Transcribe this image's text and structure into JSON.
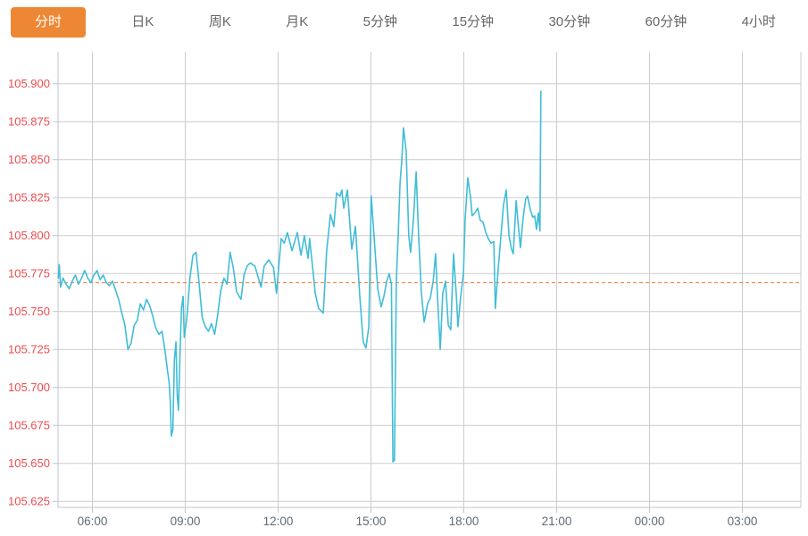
{
  "tabbar": {
    "items": [
      {
        "label": "分时",
        "active": true
      },
      {
        "label": "日K",
        "active": false
      },
      {
        "label": "周K",
        "active": false
      },
      {
        "label": "月K",
        "active": false
      },
      {
        "label": "5分钟",
        "active": false
      },
      {
        "label": "15分钟",
        "active": false
      },
      {
        "label": "30分钟",
        "active": false
      },
      {
        "label": "60分钟",
        "active": false
      },
      {
        "label": "4小时",
        "active": false
      }
    ]
  },
  "colors": {
    "accent": "#ee8733",
    "tab_text": "#666666",
    "line": "#41bdd6",
    "reference": "#f26f21",
    "y_label": "#ef4a4d",
    "x_label": "#5f6c76",
    "grid": "#cccccc",
    "axis": "#bfc5c9"
  },
  "chart_data": {
    "type": "line",
    "title": "",
    "xlabel": "",
    "ylabel": "",
    "legend": "none",
    "grid": true,
    "ylim": [
      105.621,
      105.921
    ],
    "xlim_hours": [
      4.89,
      28.89
    ],
    "y_ticks": [
      105.9,
      105.875,
      105.85,
      105.825,
      105.8,
      105.775,
      105.75,
      105.725,
      105.7,
      105.675,
      105.65,
      105.625
    ],
    "y_tick_labels": [
      "105.900",
      "105.875",
      "105.850",
      "105.825",
      "105.800",
      "105.775",
      "105.750",
      "105.725",
      "105.700",
      "105.675",
      "105.650",
      "105.625"
    ],
    "x_tick_hours": [
      6,
      9,
      12,
      15,
      18,
      21,
      24,
      27
    ],
    "x_tick_labels": [
      "06:00",
      "09:00",
      "12:00",
      "15:00",
      "18:00",
      "21:00",
      "00:00",
      "03:00"
    ],
    "reference_line": {
      "value": 105.769,
      "style": "dashed",
      "color": "#f26f21"
    },
    "series": [
      {
        "name": "price",
        "color": "#41bdd6",
        "points": [
          [
            4.9,
            105.772
          ],
          [
            4.93,
            105.781
          ],
          [
            4.97,
            105.766
          ],
          [
            5.05,
            105.772
          ],
          [
            5.15,
            105.768
          ],
          [
            5.25,
            105.765
          ],
          [
            5.35,
            105.77
          ],
          [
            5.45,
            105.774
          ],
          [
            5.55,
            105.768
          ],
          [
            5.65,
            105.772
          ],
          [
            5.75,
            105.777
          ],
          [
            5.85,
            105.772
          ],
          [
            5.95,
            105.769
          ],
          [
            6.05,
            105.774
          ],
          [
            6.15,
            105.777
          ],
          [
            6.25,
            105.771
          ],
          [
            6.35,
            105.774
          ],
          [
            6.45,
            105.769
          ],
          [
            6.55,
            105.767
          ],
          [
            6.65,
            105.77
          ],
          [
            6.75,
            105.764
          ],
          [
            6.85,
            105.758
          ],
          [
            6.95,
            105.749
          ],
          [
            7.05,
            105.741
          ],
          [
            7.15,
            105.725
          ],
          [
            7.25,
            105.729
          ],
          [
            7.35,
            105.741
          ],
          [
            7.45,
            105.744
          ],
          [
            7.55,
            105.755
          ],
          [
            7.65,
            105.751
          ],
          [
            7.75,
            105.758
          ],
          [
            7.85,
            105.754
          ],
          [
            7.95,
            105.747
          ],
          [
            8.05,
            105.739
          ],
          [
            8.15,
            105.735
          ],
          [
            8.25,
            105.737
          ],
          [
            8.35,
            105.724
          ],
          [
            8.42,
            105.712
          ],
          [
            8.48,
            105.703
          ],
          [
            8.52,
            105.69
          ],
          [
            8.55,
            105.668
          ],
          [
            8.6,
            105.672
          ],
          [
            8.65,
            105.718
          ],
          [
            8.7,
            105.73
          ],
          [
            8.74,
            105.695
          ],
          [
            8.78,
            105.685
          ],
          [
            8.83,
            105.722
          ],
          [
            8.88,
            105.752
          ],
          [
            8.93,
            105.76
          ],
          [
            8.97,
            105.733
          ],
          [
            9.05,
            105.745
          ],
          [
            9.15,
            105.772
          ],
          [
            9.25,
            105.787
          ],
          [
            9.35,
            105.789
          ],
          [
            9.45,
            105.768
          ],
          [
            9.55,
            105.746
          ],
          [
            9.65,
            105.74
          ],
          [
            9.75,
            105.737
          ],
          [
            9.85,
            105.742
          ],
          [
            9.95,
            105.735
          ],
          [
            10.05,
            105.748
          ],
          [
            10.15,
            105.764
          ],
          [
            10.25,
            105.772
          ],
          [
            10.35,
            105.768
          ],
          [
            10.45,
            105.789
          ],
          [
            10.55,
            105.779
          ],
          [
            10.66,
            105.763
          ],
          [
            10.8,
            105.758
          ],
          [
            10.9,
            105.774
          ],
          [
            11.0,
            105.78
          ],
          [
            11.1,
            105.782
          ],
          [
            11.25,
            105.78
          ],
          [
            11.45,
            105.766
          ],
          [
            11.55,
            105.78
          ],
          [
            11.7,
            105.784
          ],
          [
            11.85,
            105.779
          ],
          [
            11.95,
            105.762
          ],
          [
            12.1,
            105.798
          ],
          [
            12.2,
            105.795
          ],
          [
            12.3,
            105.802
          ],
          [
            12.45,
            105.79
          ],
          [
            12.62,
            105.802
          ],
          [
            12.74,
            105.787
          ],
          [
            12.85,
            105.8
          ],
          [
            12.97,
            105.785
          ],
          [
            13.02,
            105.798
          ],
          [
            13.11,
            105.78
          ],
          [
            13.2,
            105.762
          ],
          [
            13.31,
            105.752
          ],
          [
            13.46,
            105.749
          ],
          [
            13.57,
            105.79
          ],
          [
            13.69,
            105.814
          ],
          [
            13.8,
            105.806
          ],
          [
            13.89,
            105.828
          ],
          [
            14.0,
            105.826
          ],
          [
            14.06,
            105.83
          ],
          [
            14.12,
            105.818
          ],
          [
            14.24,
            105.83
          ],
          [
            14.38,
            105.791
          ],
          [
            14.5,
            105.806
          ],
          [
            14.64,
            105.76
          ],
          [
            14.75,
            105.73
          ],
          [
            14.84,
            105.726
          ],
          [
            14.93,
            105.74
          ],
          [
            15.01,
            105.826
          ],
          [
            15.1,
            105.8
          ],
          [
            15.22,
            105.765
          ],
          [
            15.33,
            105.753
          ],
          [
            15.42,
            105.76
          ],
          [
            15.51,
            105.77
          ],
          [
            15.59,
            105.775
          ],
          [
            15.66,
            105.768
          ],
          [
            15.71,
            105.651
          ],
          [
            15.76,
            105.652
          ],
          [
            15.82,
            105.77
          ],
          [
            15.88,
            105.8
          ],
          [
            15.94,
            105.835
          ],
          [
            16.0,
            105.85
          ],
          [
            16.05,
            105.871
          ],
          [
            16.14,
            105.855
          ],
          [
            16.22,
            105.8
          ],
          [
            16.28,
            105.789
          ],
          [
            16.37,
            105.81
          ],
          [
            16.46,
            105.842
          ],
          [
            16.54,
            105.8
          ],
          [
            16.63,
            105.762
          ],
          [
            16.72,
            105.743
          ],
          [
            16.83,
            105.755
          ],
          [
            16.92,
            105.759
          ],
          [
            17.01,
            105.77
          ],
          [
            17.09,
            105.788
          ],
          [
            17.15,
            105.76
          ],
          [
            17.24,
            105.725
          ],
          [
            17.32,
            105.762
          ],
          [
            17.41,
            105.77
          ],
          [
            17.5,
            105.741
          ],
          [
            17.58,
            105.738
          ],
          [
            17.67,
            105.788
          ],
          [
            17.76,
            105.76
          ],
          [
            17.81,
            105.74
          ],
          [
            17.9,
            105.76
          ],
          [
            17.99,
            105.775
          ],
          [
            18.04,
            105.81
          ],
          [
            18.13,
            105.838
          ],
          [
            18.22,
            105.825
          ],
          [
            18.27,
            105.813
          ],
          [
            18.36,
            105.815
          ],
          [
            18.45,
            105.818
          ],
          [
            18.53,
            105.81
          ],
          [
            18.62,
            105.809
          ],
          [
            18.71,
            105.802
          ],
          [
            18.79,
            105.798
          ],
          [
            18.88,
            105.795
          ],
          [
            18.97,
            105.796
          ],
          [
            19.02,
            105.752
          ],
          [
            19.11,
            105.778
          ],
          [
            19.2,
            105.8
          ],
          [
            19.28,
            105.82
          ],
          [
            19.37,
            105.83
          ],
          [
            19.46,
            105.8
          ],
          [
            19.54,
            105.791
          ],
          [
            19.6,
            105.788
          ],
          [
            19.69,
            105.823
          ],
          [
            19.77,
            105.805
          ],
          [
            19.83,
            105.792
          ],
          [
            19.92,
            105.812
          ],
          [
            20.0,
            105.824
          ],
          [
            20.06,
            105.826
          ],
          [
            20.15,
            105.817
          ],
          [
            20.23,
            105.812
          ],
          [
            20.29,
            105.813
          ],
          [
            20.35,
            105.804
          ],
          [
            20.41,
            105.815
          ],
          [
            20.46,
            105.803
          ],
          [
            20.49,
            105.895
          ]
        ]
      }
    ]
  }
}
